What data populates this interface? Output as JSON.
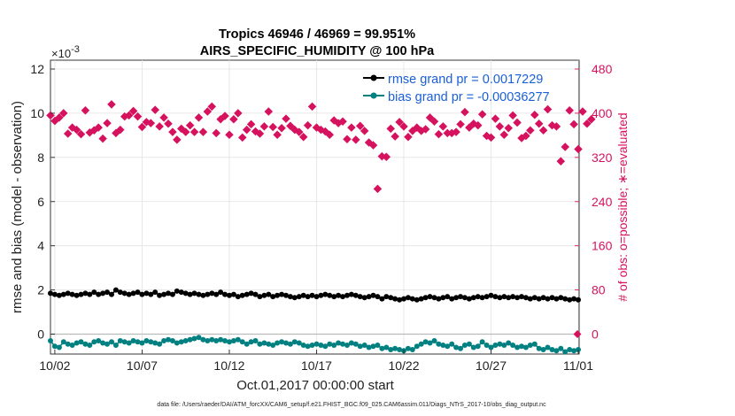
{
  "chart_data": {
    "type": "line",
    "title": "Tropics 46946 / 46969 = 99.951%",
    "subtitle": "AIRS_SPECIFIC_HUMIDITY @ 100 hPa",
    "ylabel_left": "rmse and bias (model - observation)",
    "ylabel_right": "# of obs: o=possible; ∗=evaluated",
    "y_multiplier": "×10",
    "y_exponent": "-3",
    "xlabel": "Oct.01,2017 00:00:00 start",
    "footnote": "data file: /Users/raeder/DAI/ATM_forcXX/CAM6_setup/f.e21.FHIST_BGC.f09_025.CAM6assim.011/Diags_NTrS_2017-10/obs_diag_output.nc",
    "x_ticks": [
      "10/02",
      "10/07",
      "10/12",
      "10/17",
      "10/22",
      "10/27",
      "11/01"
    ],
    "x_tick_days": [
      1,
      6,
      11,
      16,
      21,
      26,
      31
    ],
    "xlim": [
      0.75,
      31.05
    ],
    "left_yticks": [
      0,
      2,
      4,
      6,
      8,
      10,
      12
    ],
    "left_ylim": [
      -0.9,
      12.4
    ],
    "right_yticks": [
      0,
      80,
      160,
      240,
      320,
      400,
      480
    ],
    "right_ylim": [
      -36,
      496
    ],
    "legend": [
      {
        "label": "rmse grand pr = 0.0017229",
        "color": "#000000"
      },
      {
        "label": "bias grand pr = -0.00036277",
        "color": "#008080"
      }
    ],
    "colors": {
      "rmse": "#000000",
      "bias": "#008080",
      "obs": "#d6125e",
      "zero_line": "#bbbbbb",
      "axis": "#222222"
    },
    "series": [
      {
        "name": "rmse",
        "units": "x1e-3",
        "x_start": 0.75,
        "x_step": 0.25,
        "values": [
          1.85,
          1.8,
          1.75,
          1.8,
          1.85,
          1.8,
          1.75,
          1.8,
          1.85,
          1.8,
          1.9,
          1.8,
          1.85,
          1.9,
          1.8,
          2.0,
          1.9,
          1.85,
          1.8,
          1.85,
          1.9,
          1.8,
          1.85,
          1.8,
          1.9,
          1.75,
          1.8,
          1.85,
          1.8,
          1.95,
          1.9,
          1.85,
          1.8,
          1.85,
          1.8,
          1.75,
          1.8,
          1.85,
          1.8,
          1.9,
          1.8,
          1.75,
          1.8,
          1.7,
          1.75,
          1.8,
          1.85,
          1.8,
          1.7,
          1.75,
          1.8,
          1.7,
          1.75,
          1.8,
          1.75,
          1.7,
          1.65,
          1.7,
          1.75,
          1.7,
          1.75,
          1.7,
          1.75,
          1.8,
          1.75,
          1.7,
          1.75,
          1.7,
          1.75,
          1.8,
          1.75,
          1.7,
          1.65,
          1.7,
          1.75,
          1.7,
          1.6,
          1.7,
          1.65,
          1.6,
          1.55,
          1.6,
          1.65,
          1.6,
          1.55,
          1.6,
          1.65,
          1.7,
          1.65,
          1.6,
          1.65,
          1.7,
          1.6,
          1.65,
          1.7,
          1.65,
          1.6,
          1.65,
          1.7,
          1.65,
          1.7,
          1.75,
          1.7,
          1.65,
          1.7,
          1.65,
          1.7,
          1.65,
          1.7,
          1.65,
          1.6,
          1.65,
          1.6,
          1.65,
          1.6,
          1.65,
          1.6,
          1.65,
          1.6,
          1.55,
          1.6,
          1.55
        ]
      },
      {
        "name": "bias",
        "units": "x1e-3",
        "x_start": 0.75,
        "x_step": 0.25,
        "values": [
          -0.3,
          -0.55,
          -0.6,
          -0.35,
          -0.45,
          -0.5,
          -0.4,
          -0.35,
          -0.45,
          -0.5,
          -0.35,
          -0.3,
          -0.4,
          -0.45,
          -0.35,
          -0.5,
          -0.3,
          -0.35,
          -0.4,
          -0.3,
          -0.35,
          -0.4,
          -0.3,
          -0.35,
          -0.4,
          -0.45,
          -0.3,
          -0.25,
          -0.3,
          -0.4,
          -0.35,
          -0.3,
          -0.25,
          -0.2,
          -0.15,
          -0.25,
          -0.3,
          -0.25,
          -0.3,
          -0.25,
          -0.3,
          -0.35,
          -0.3,
          -0.25,
          -0.35,
          -0.45,
          -0.35,
          -0.3,
          -0.45,
          -0.4,
          -0.45,
          -0.5,
          -0.4,
          -0.35,
          -0.4,
          -0.45,
          -0.35,
          -0.4,
          -0.5,
          -0.55,
          -0.5,
          -0.45,
          -0.5,
          -0.55,
          -0.45,
          -0.5,
          -0.4,
          -0.45,
          -0.5,
          -0.4,
          -0.45,
          -0.55,
          -0.5,
          -0.6,
          -0.55,
          -0.5,
          -0.65,
          -0.6,
          -0.7,
          -0.65,
          -0.7,
          -0.75,
          -0.65,
          -0.7,
          -0.55,
          -0.45,
          -0.35,
          -0.4,
          -0.3,
          -0.45,
          -0.5,
          -0.55,
          -0.45,
          -0.6,
          -0.65,
          -0.5,
          -0.45,
          -0.6,
          -0.55,
          -0.35,
          -0.5,
          -0.6,
          -0.5,
          -0.45,
          -0.5,
          -0.4,
          -0.5,
          -0.6,
          -0.55,
          -0.6,
          -0.5,
          -0.45,
          -0.65,
          -0.7,
          -0.6,
          -0.7,
          -0.75,
          -0.65,
          -0.8,
          -0.7,
          -0.75,
          -0.7
        ]
      },
      {
        "name": "obs_evaluated",
        "axis": "right",
        "x_start": 0.75,
        "x_step": 0.25,
        "values": [
          396,
          386,
          392,
          400,
          363,
          374,
          370,
          362,
          405,
          365,
          369,
          374,
          354,
          382,
          416,
          364,
          370,
          394,
          396,
          404,
          394,
          375,
          384,
          382,
          406,
          376,
          392,
          381,
          366,
          352,
          372,
          366,
          378,
          366,
          392,
          366,
          403,
          412,
          364,
          389,
          395,
          361,
          389,
          400,
          356,
          370,
          380,
          367,
          363,
          376,
          403,
          375,
          361,
          373,
          390,
          377,
          370,
          366,
          357,
          378,
          412,
          374,
          370,
          367,
          361,
          387,
          382,
          385,
          353,
          374,
          352,
          377,
          368,
          347,
          342,
          263,
          322,
          321,
          372,
          358,
          384,
          376,
          357,
          368,
          374,
          368,
          371,
          392,
          385,
          362,
          376,
          364,
          364,
          366,
          380,
          402,
          374,
          381,
          378,
          398,
          359,
          356,
          390,
          376,
          361,
          373,
          396,
          383,
          355,
          359,
          369,
          397,
          381,
          369,
          407,
          378,
          376,
          313,
          339,
          405,
          380,
          335,
          403,
          381,
          389
        ]
      }
    ]
  }
}
